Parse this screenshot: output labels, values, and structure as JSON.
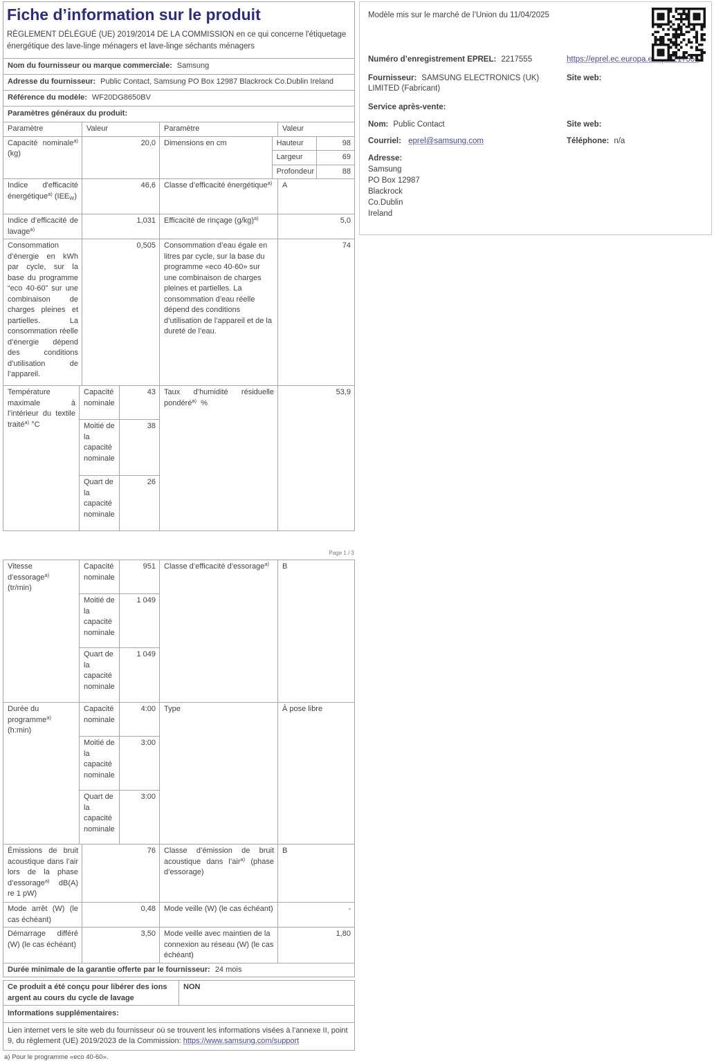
{
  "doc": {
    "title": "Fiche d’information sur le produit",
    "regulation": "RÈGLEMENT DÉLÉGUÉ (UE) 2019/2014 DE LA COMMISSION en ce qui concerne l'étiquetage énergétique des lave-linge ménagers et lave-linge séchants ménagers",
    "page_marker": "Page 1 / 3",
    "footnote": "a) Pour le programme «eco 40-60»."
  },
  "info": {
    "supplier_label": "Nom du fournisseur ou marque commerciale:",
    "supplier": "Samsung",
    "address_label": "Adresse du fournisseur:",
    "address": "Public Contact, Samsung PO Box 12987 Blackrock Co.Dublin Ireland",
    "model_label": "Référence du modèle:",
    "model": "WF20DG8650BV",
    "general_label": "Paramètres généraux du produit:"
  },
  "headers": {
    "param1": "Paramètre",
    "value1": "Valeur",
    "param2": "Paramètre",
    "value2": "Valeur"
  },
  "rows": {
    "capacity": {
      "label": "Capacité nominale",
      "sup": "a)",
      "unit": "(kg)",
      "value": "20,0"
    },
    "dimensions": {
      "label": "Dimensions en cm",
      "items": [
        {
          "name": "Hauteur",
          "value": "98"
        },
        {
          "name": "Largeur",
          "value": "69"
        },
        {
          "name": "Profondeur",
          "value": "88"
        }
      ]
    },
    "eei": {
      "label": "Indice d'efficacité énergétique",
      "sup": "a)",
      "unit_pre": "(IEE",
      "unit_sub": "W",
      "unit_post": ")",
      "value": "46,6"
    },
    "energy_class": {
      "label": "Classe d’efficacité énergétique",
      "sup": "a)",
      "value": "A"
    },
    "wash_index": {
      "label": "Indice d’efficacité de lavage",
      "sup": "a)",
      "value": "1,031"
    },
    "rinse": {
      "label": "Efficacité de rinçage (g/kg)",
      "sup": "a)",
      "value": "5,0"
    },
    "energy_cons": {
      "label": "Consommation d’énergie en kWh par cycle, sur la base du programme “eco 40-60” sur une combinaison de charges pleines et partielles. La consommation réelle d’énergie dépend des conditions d’utilisation de l’appareil.",
      "value": "0,505"
    },
    "water_cons": {
      "label": "Consommation d’eau égale en litres par cycle, sur la base du programme «eco 40-60» sur une combinaison de charges pleines et partielles. La consommation d’eau réelle dépend des conditions d’utilisation de l’appareil et de la dureté de l’eau.",
      "value": "74"
    },
    "temp": {
      "label": "Température maximale à l’intérieur du textile traité",
      "sup": "a)",
      "unit": "°C",
      "items": [
        {
          "name": "Capacité nominale",
          "value": "43"
        },
        {
          "name": "Moitié de la capacité nominale",
          "value": "38"
        },
        {
          "name": "Quart de la capacité nominale",
          "value": "26"
        }
      ]
    },
    "humidity": {
      "label": "Taux d’humidité résiduelle pondéré",
      "sup": "a)",
      "unit": "%",
      "value": "53,9"
    },
    "spin": {
      "label": "Vitesse d'essorage",
      "sup": "a)",
      "unit": "(tr/min)",
      "items": [
        {
          "name": "Capacité nominale",
          "value": "951"
        },
        {
          "name": "Moitié de la capacité nominale",
          "value": "1 049"
        },
        {
          "name": "Quart de la capacité nominale",
          "value": "1 049"
        }
      ]
    },
    "spin_class": {
      "label": "Classe d’efficacité d’essorage",
      "sup": "a)",
      "value": "B"
    },
    "duration": {
      "label": "Durée du programme",
      "sup": "a)",
      "unit": "(h:min)",
      "items": [
        {
          "name": "Capacité nominale",
          "value": "4:00"
        },
        {
          "name": "Moitié de la capacité nominale",
          "value": "3:00"
        },
        {
          "name": "Quart de la capacité nominale",
          "value": "3:00"
        }
      ]
    },
    "type": {
      "label": "Type",
      "value": "À pose libre"
    },
    "noise": {
      "label": "Émissions de bruit acoustique dans l’air lors de la phase d’essorage",
      "sup": "a)",
      "unit": "dB(A) re 1 pW)",
      "value": "76"
    },
    "noise_class": {
      "label": "Classe d’émission de bruit acoustique dans l’air",
      "sup": "a)",
      "unit": "(phase d’essorage)",
      "value": "B"
    },
    "off_mode": {
      "label": "Mode arrêt (W) (le cas échéant)",
      "value": "0,48"
    },
    "standby": {
      "label": "Mode veille (W) (le cas échéant)",
      "value": "-"
    },
    "delay": {
      "label": "Démarrage différé (W) (le cas échéant)",
      "value": "3,50"
    },
    "network_standby": {
      "label": "Mode veille avec maintien de la connexion au réseau (W) (le cas échéant)",
      "value": "1,80"
    },
    "warranty": {
      "label": "Durée minimale de la garantie offerte par le fournisseur:",
      "value": "24 mois"
    },
    "ions": {
      "label": "Ce produit a été conçu pour libérer des ions argent au cours du cycle de lavage",
      "value": "NON"
    },
    "extra_label": "Informations supplémentaires:",
    "weblink": {
      "label": "Lien internet vers le site web du fournisseur où se trouvent les informations visées à l’annexe II, point 9, du règlement (UE) 2019/2023 de la Commission:",
      "url": "https://www.samsung.com/support"
    }
  },
  "eprel": {
    "market_date": "Modèle mis sur le marché de l’Union du 11/04/2025",
    "reg_label": "Numéro d’enregistrement EPREL:",
    "reg_number": "2217555",
    "qr_url": "https://eprel.ec.europa.eu/qr/2217555",
    "supplier_label": "Fournisseur:",
    "supplier": "SAMSUNG ELECTRONICS (UK) LIMITED (Fabricant)",
    "website_label": "Site web:",
    "after_sales_label": "Service après-vente:",
    "name_label": "Nom:",
    "name": "Public Contact",
    "email_label": "Courriel:",
    "email": "eprel@samsung.com",
    "phone_label": "Téléphone:",
    "phone": "n/a",
    "address_label": "Adresse:",
    "address_lines": [
      "Samsung",
      "PO Box 12987",
      "Blackrock",
      "Co.Dublin",
      "Ireland"
    ]
  },
  "colors": {
    "title": "#2b2b82",
    "text": "#3f3f3f",
    "border": "#a6a6a6",
    "link": "#4747a1"
  }
}
